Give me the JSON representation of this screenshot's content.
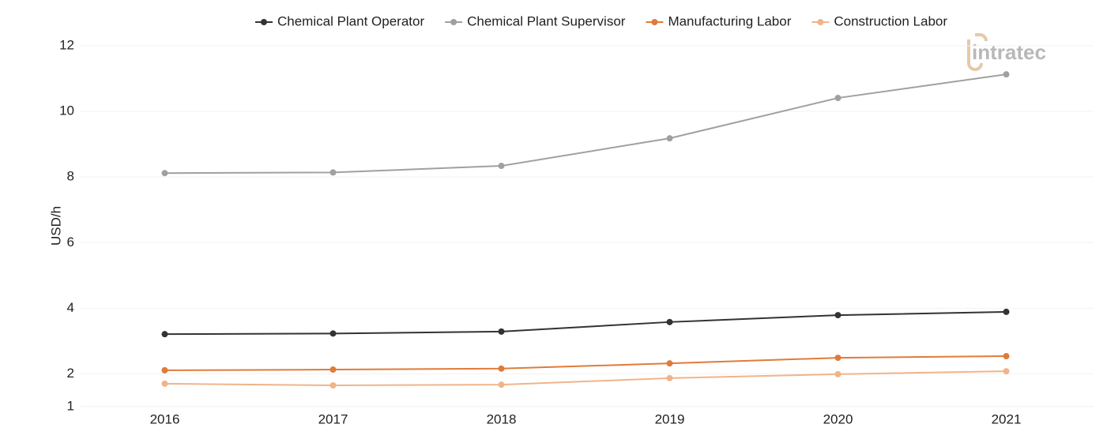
{
  "chart_data": {
    "type": "line",
    "logo": "intratec",
    "y_label": "USD/h",
    "categories": [
      "2016",
      "2017",
      "2018",
      "2019",
      "2020",
      "2021"
    ],
    "series": [
      {
        "name": "Chemical Plant Operator",
        "color": "#333333",
        "values": [
          3.21,
          3.23,
          3.29,
          3.58,
          3.79,
          3.89
        ]
      },
      {
        "name": "Chemical Plant Supervisor",
        "color": "#a0a0a0",
        "values": [
          8.12,
          8.14,
          8.34,
          9.18,
          10.41,
          11.13
        ]
      },
      {
        "name": "Manufacturing Labor",
        "color": "#e07b39",
        "values": [
          2.11,
          2.13,
          2.16,
          2.32,
          2.49,
          2.54
        ]
      },
      {
        "name": "Construction Labor",
        "color": "#f0b48a",
        "values": [
          1.7,
          1.65,
          1.67,
          1.87,
          1.99,
          2.08
        ]
      }
    ],
    "ylim": [
      1,
      12
    ],
    "yticks": [
      1,
      2,
      4,
      6,
      8,
      10,
      12
    ],
    "grid": true,
    "legend": "top"
  }
}
